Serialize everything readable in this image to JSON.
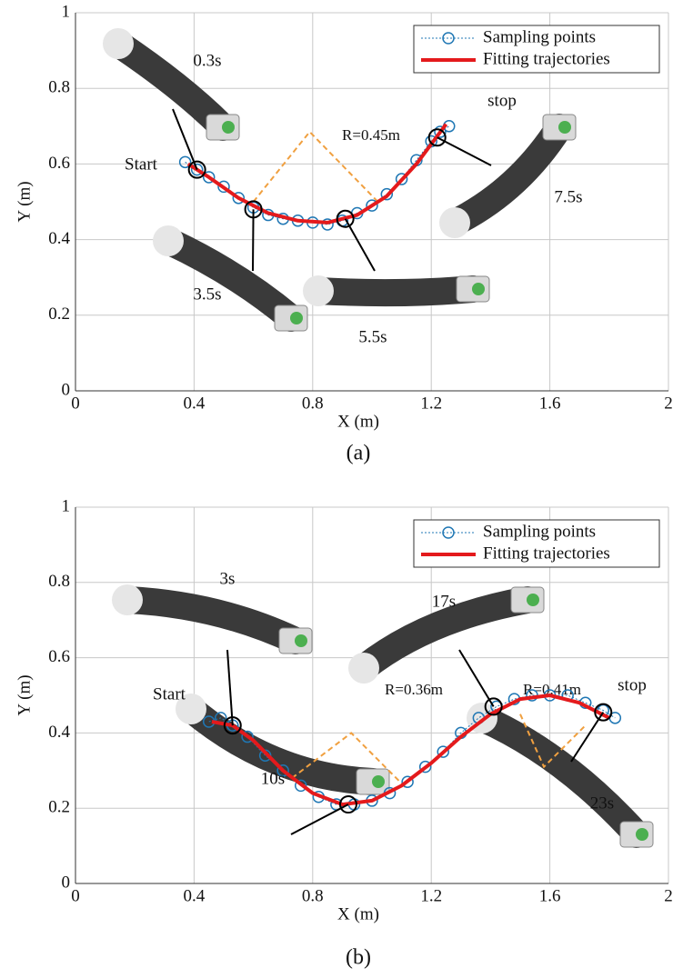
{
  "chart_data": [
    {
      "type": "line",
      "caption": "(a)",
      "x_label": "X (m)",
      "y_label": "Y (m)",
      "xlim": [
        0,
        2
      ],
      "ylim": [
        0,
        1
      ],
      "xticks": [
        0,
        0.4,
        0.8,
        1.2,
        1.6,
        2
      ],
      "yticks": [
        0,
        0.2,
        0.4,
        0.6,
        0.8,
        1
      ],
      "grid": true,
      "legend": "upper right",
      "series": [
        {
          "name": "Sampling points",
          "color": "#1f77b4",
          "marker": "circle",
          "x": [
            0.37,
            0.41,
            0.45,
            0.5,
            0.55,
            0.6,
            0.65,
            0.7,
            0.75,
            0.8,
            0.85,
            0.9,
            0.95,
            1.0,
            1.05,
            1.1,
            1.15,
            1.2,
            1.23,
            1.26
          ],
          "values": [
            0.605,
            0.585,
            0.565,
            0.54,
            0.51,
            0.485,
            0.465,
            0.455,
            0.45,
            0.445,
            0.44,
            0.45,
            0.47,
            0.49,
            0.52,
            0.56,
            0.61,
            0.66,
            0.685,
            0.7
          ]
        },
        {
          "name": "Fitting trajectories",
          "color": "#e41a1c",
          "marker": "none",
          "x": [
            0.38,
            0.45,
            0.55,
            0.65,
            0.75,
            0.85,
            0.95,
            1.05,
            1.15,
            1.25
          ],
          "values": [
            0.6,
            0.565,
            0.51,
            0.47,
            0.45,
            0.445,
            0.465,
            0.515,
            0.6,
            0.705
          ]
        }
      ],
      "events": [
        {
          "label": "0.3s",
          "x": 0.41,
          "y": 0.585
        },
        {
          "label": "3.5s",
          "x": 0.6,
          "y": 0.48
        },
        {
          "label": "5.5s",
          "x": 0.91,
          "y": 0.455
        },
        {
          "label": "7.5s",
          "x": 1.22,
          "y": 0.67
        }
      ],
      "radius_guides": [
        {
          "label": "R=0.45m",
          "color": "#f0a040",
          "x": [
            0.6,
            0.79,
            1.02
          ],
          "y": [
            0.5,
            0.685,
            0.5
          ]
        }
      ],
      "annotations": [
        "Start",
        "stop"
      ]
    },
    {
      "type": "line",
      "caption": "(b)",
      "x_label": "X (m)",
      "y_label": "Y (m)",
      "xlim": [
        0,
        2
      ],
      "ylim": [
        0,
        1
      ],
      "xticks": [
        0,
        0.4,
        0.8,
        1.2,
        1.6,
        2
      ],
      "yticks": [
        0,
        0.2,
        0.4,
        0.6,
        0.8,
        1
      ],
      "grid": true,
      "legend": "upper right",
      "series": [
        {
          "name": "Sampling points",
          "color": "#1f77b4",
          "marker": "circle",
          "x": [
            0.45,
            0.49,
            0.53,
            0.58,
            0.64,
            0.7,
            0.76,
            0.82,
            0.88,
            0.94,
            1.0,
            1.06,
            1.12,
            1.18,
            1.24,
            1.3,
            1.36,
            1.42,
            1.48,
            1.54,
            1.6,
            1.66,
            1.72,
            1.78,
            1.82
          ],
          "values": [
            0.43,
            0.44,
            0.42,
            0.39,
            0.34,
            0.3,
            0.26,
            0.23,
            0.21,
            0.21,
            0.22,
            0.24,
            0.27,
            0.31,
            0.35,
            0.4,
            0.44,
            0.47,
            0.49,
            0.5,
            0.5,
            0.5,
            0.48,
            0.46,
            0.44
          ]
        },
        {
          "name": "Fitting trajectories",
          "color": "#e41a1c",
          "marker": "none",
          "x": [
            0.46,
            0.53,
            0.6,
            0.7,
            0.8,
            0.9,
            1.0,
            1.1,
            1.2,
            1.3,
            1.4,
            1.5,
            1.6,
            1.7,
            1.8
          ],
          "values": [
            0.43,
            0.42,
            0.38,
            0.3,
            0.24,
            0.21,
            0.22,
            0.26,
            0.32,
            0.39,
            0.45,
            0.49,
            0.5,
            0.48,
            0.44
          ]
        }
      ],
      "events": [
        {
          "label": "3s",
          "x": 0.53,
          "y": 0.42
        },
        {
          "label": "10s",
          "x": 0.92,
          "y": 0.21
        },
        {
          "label": "17s",
          "x": 1.41,
          "y": 0.47
        },
        {
          "label": "23s",
          "x": 1.78,
          "y": 0.455
        }
      ],
      "radius_guides": [
        {
          "label": "R=0.36m",
          "color": "#f0a040",
          "x": [
            0.73,
            0.93,
            1.12
          ],
          "y": [
            0.28,
            0.4,
            0.25
          ]
        },
        {
          "label": "R=0.41m",
          "color": "#f0a040",
          "x": [
            1.5,
            1.58,
            1.72
          ],
          "y": [
            0.45,
            0.31,
            0.42
          ]
        }
      ],
      "annotations": [
        "Start",
        "stop"
      ]
    }
  ]
}
